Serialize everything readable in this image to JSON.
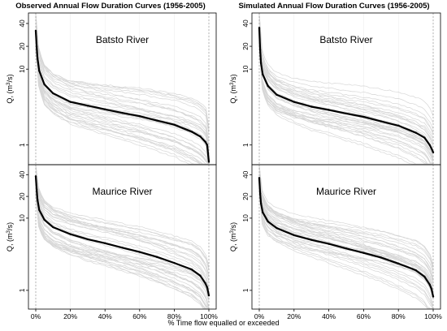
{
  "figure": {
    "xlabel": "% Time flow equalled or exceeded"
  },
  "columns": [
    {
      "title": "Observed Annual Flow Duration Curves (1956-2005)"
    },
    {
      "title": "Simulated Annual Flow Duration Curves (1956-2005)"
    }
  ],
  "ylabel": {
    "main": "Q,",
    "unit": "(m",
    "sup": "3",
    "unit_end": "/s)"
  },
  "colors": {
    "annual_curves": "#d6d6d6",
    "mean_curve": "#000000",
    "frame": "#000000",
    "ref_lines": "#999999"
  },
  "chart_data": [
    {
      "type": "line",
      "title": "Batsto River",
      "column": "Observed Annual Flow Duration Curves (1956-2005)",
      "xlabel": "% Time flow equalled or exceeded",
      "ylabel": "Q, (m3/s)",
      "yscale": "log",
      "xlim": [
        0,
        100
      ],
      "ylim": [
        0.55,
        55
      ],
      "xticks": [
        "0%",
        "20%",
        "40%",
        "60%",
        "80%",
        "100%"
      ],
      "yticks": [
        1,
        10,
        20,
        40
      ],
      "series": [
        {
          "x": [
            0,
            0.5,
            1,
            2,
            5,
            10,
            20,
            30,
            40,
            50,
            60,
            70,
            80,
            90,
            95,
            98,
            99,
            100
          ],
          "values": [
            32,
            20,
            14,
            9.5,
            6.3,
            4.8,
            3.7,
            3.3,
            2.95,
            2.65,
            2.4,
            2.1,
            1.85,
            1.5,
            1.3,
            1.1,
            1.0,
            0.6
          ]
        }
      ],
      "grid": false
    },
    {
      "type": "line",
      "title": "Batsto River",
      "column": "Simulated Annual Flow Duration Curves (1956-2005)",
      "xlabel": "% Time flow equalled or exceeded",
      "ylabel": "Q, (m3/s)",
      "yscale": "log",
      "xlim": [
        0,
        100
      ],
      "ylim": [
        0.55,
        55
      ],
      "xticks": [
        "0%",
        "20%",
        "40%",
        "60%",
        "80%",
        "100%"
      ],
      "yticks": [
        1,
        10,
        20,
        40
      ],
      "series": [
        {
          "x": [
            0,
            0.5,
            1,
            2,
            5,
            10,
            20,
            30,
            40,
            50,
            60,
            70,
            80,
            90,
            95,
            98,
            99,
            100
          ],
          "values": [
            35,
            18,
            12,
            8.5,
            6.0,
            4.6,
            3.7,
            3.2,
            2.9,
            2.6,
            2.35,
            2.05,
            1.8,
            1.45,
            1.25,
            1.0,
            0.9,
            0.8
          ]
        }
      ],
      "grid": false
    },
    {
      "type": "line",
      "title": "Maurice River",
      "column": "Observed Annual Flow Duration Curves (1956-2005)",
      "xlabel": "% Time flow equalled or exceeded",
      "ylabel": "Q, (m3/s)",
      "yscale": "log",
      "xlim": [
        0,
        100
      ],
      "ylim": [
        0.55,
        55
      ],
      "xticks": [
        "0%",
        "20%",
        "40%",
        "60%",
        "80%",
        "100%"
      ],
      "yticks": [
        1,
        10,
        20,
        40
      ],
      "series": [
        {
          "x": [
            0,
            0.5,
            1,
            2,
            5,
            10,
            20,
            30,
            40,
            50,
            60,
            70,
            80,
            90,
            95,
            98,
            99,
            100
          ],
          "values": [
            38,
            25,
            18,
            13,
            9.5,
            7.5,
            6.0,
            5.1,
            4.5,
            3.9,
            3.4,
            2.9,
            2.4,
            1.95,
            1.6,
            1.25,
            1.1,
            0.85
          ]
        }
      ],
      "grid": false
    },
    {
      "type": "line",
      "title": "Maurice River",
      "column": "Simulated Annual Flow Duration Curves (1956-2005)",
      "xlabel": "% Time flow equalled or exceeded",
      "ylabel": "Q, (m3/s)",
      "yscale": "log",
      "xlim": [
        0,
        100
      ],
      "ylim": [
        0.55,
        55
      ],
      "xticks": [
        "0%",
        "20%",
        "40%",
        "60%",
        "80%",
        "100%"
      ],
      "yticks": [
        1,
        10,
        20,
        40
      ],
      "series": [
        {
          "x": [
            0,
            0.5,
            1,
            2,
            5,
            10,
            20,
            30,
            40,
            50,
            60,
            70,
            80,
            90,
            95,
            98,
            99,
            100
          ],
          "values": [
            36,
            22,
            16,
            12,
            9.0,
            7.3,
            5.8,
            5.0,
            4.4,
            3.8,
            3.3,
            2.85,
            2.35,
            1.9,
            1.55,
            1.2,
            1.05,
            0.82
          ]
        }
      ],
      "grid": false
    }
  ]
}
